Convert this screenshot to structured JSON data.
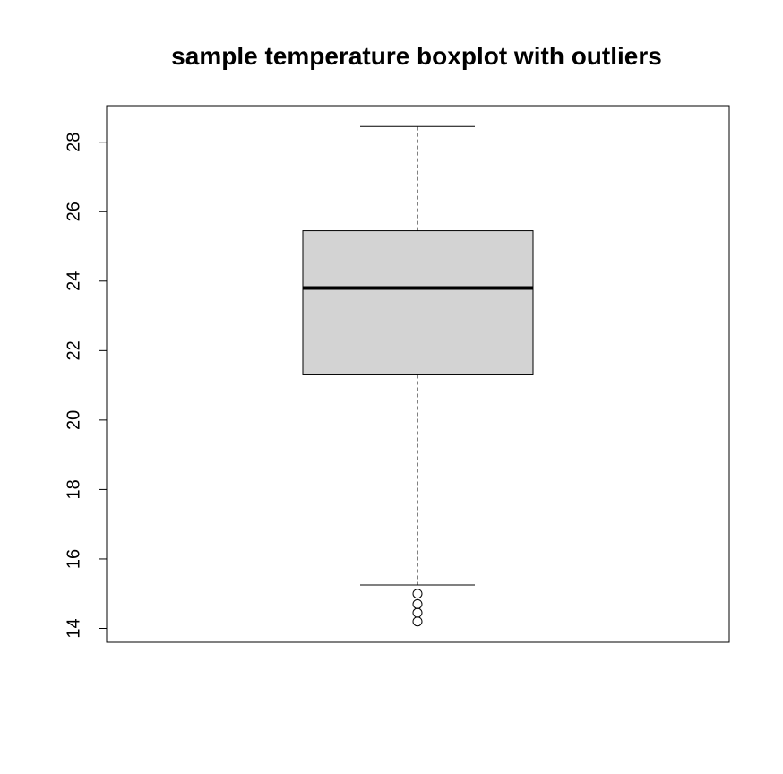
{
  "chart_data": {
    "type": "boxplot",
    "title": "sample temperature boxplot with outliers",
    "xlabel": "",
    "ylabel": "",
    "ylim": [
      13.6,
      29.05
    ],
    "yticks": [
      14,
      16,
      18,
      20,
      22,
      24,
      26,
      28
    ],
    "box": {
      "q1": 21.3,
      "median": 23.8,
      "q3": 25.45,
      "whisker_low": 15.25,
      "whisker_high": 28.45,
      "outliers": [
        15.0,
        14.7,
        14.45,
        14.2
      ]
    },
    "colors": {
      "box_fill": "#d3d3d3",
      "line": "#000000"
    }
  }
}
